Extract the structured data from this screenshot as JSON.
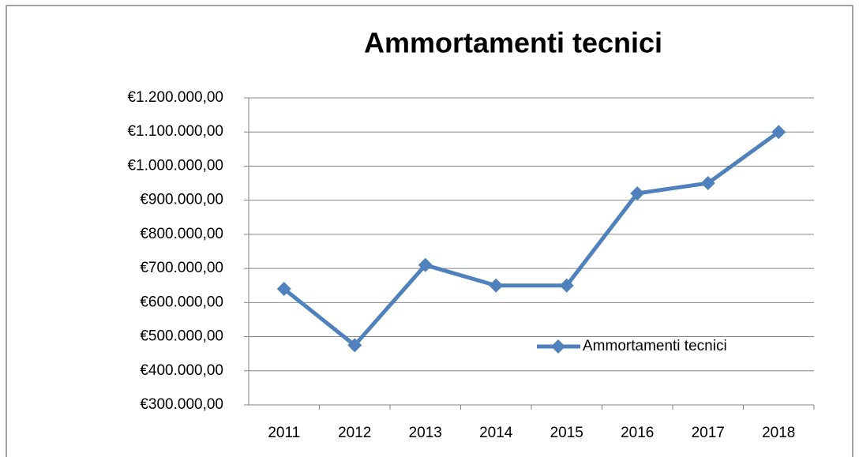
{
  "chart_data": {
    "type": "line",
    "title": "Ammortamenti tecnici",
    "categories": [
      "2011",
      "2012",
      "2013",
      "2014",
      "2015",
      "2016",
      "2017",
      "2018"
    ],
    "series": [
      {
        "name": "Ammortamenti tecnici",
        "color": "#4f81bd",
        "values": [
          640000,
          475000,
          710000,
          650000,
          650000,
          920000,
          950000,
          1100000
        ]
      }
    ],
    "ylim": [
      300000,
      1200000
    ],
    "yticks": [
      {
        "value": 300000,
        "label": "€300.000,00"
      },
      {
        "value": 400000,
        "label": "€400.000,00"
      },
      {
        "value": 500000,
        "label": "€500.000,00"
      },
      {
        "value": 600000,
        "label": "€600.000,00"
      },
      {
        "value": 700000,
        "label": "€700.000,00"
      },
      {
        "value": 800000,
        "label": "€800.000,00"
      },
      {
        "value": 900000,
        "label": "€900.000,00"
      },
      {
        "value": 1000000,
        "label": "€1.000.000,00"
      },
      {
        "value": 1100000,
        "label": "€1.100.000,00"
      },
      {
        "value": 1200000,
        "label": "€1.200.000,00"
      }
    ],
    "grid": true,
    "legend": "lower right"
  }
}
